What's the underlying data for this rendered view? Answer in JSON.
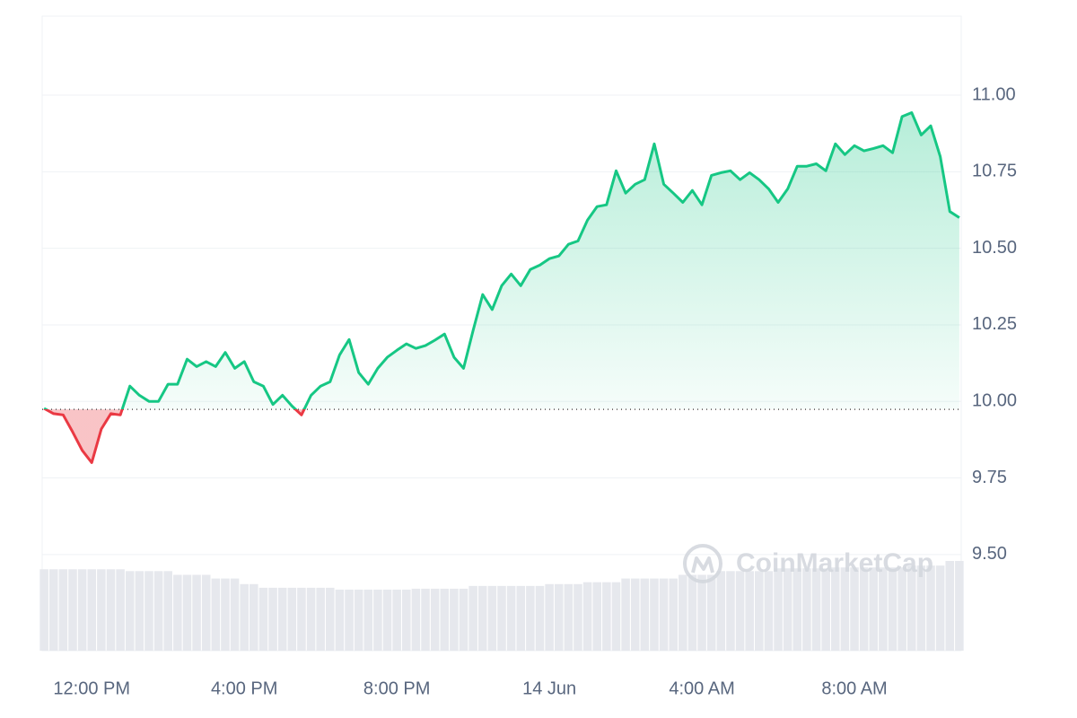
{
  "chart_data": {
    "type": "line",
    "x": [
      10.75,
      11,
      11.25,
      11.5,
      11.75,
      12,
      12.25,
      12.5,
      12.75,
      13,
      13.25,
      13.5,
      13.75,
      14,
      14.25,
      14.5,
      14.75,
      15,
      15.25,
      15.5,
      15.75,
      16,
      16.25,
      16.5,
      16.75,
      17,
      17.25,
      17.5,
      17.75,
      18,
      18.25,
      18.5,
      18.75,
      19,
      19.25,
      19.5,
      19.75,
      20,
      20.25,
      20.5,
      20.75,
      21,
      21.25,
      21.5,
      21.75,
      22,
      22.25,
      22.5,
      22.75,
      23,
      23.25,
      23.5,
      23.75,
      24,
      24.25,
      24.5,
      24.75,
      25,
      25.25,
      25.5,
      25.75,
      26,
      26.25,
      26.5,
      26.75,
      27,
      27.25,
      27.5,
      27.75,
      28,
      28.25,
      28.5,
      28.75,
      29,
      29.25,
      29.5,
      29.75,
      30,
      30.25,
      30.5,
      30.75,
      31,
      31.25,
      31.5,
      31.75,
      32,
      32.25,
      32.5,
      32.75,
      33,
      33.25,
      33.5,
      33.75,
      34,
      34.25,
      34.5,
      34.75
    ],
    "values": [
      9.977,
      9.96,
      9.956,
      9.9,
      9.84,
      9.8,
      9.91,
      9.96,
      9.956,
      10.05,
      10.02,
      10.0,
      10.0,
      10.056,
      10.056,
      10.138,
      10.114,
      10.13,
      10.114,
      10.16,
      10.108,
      10.13,
      10.064,
      10.05,
      9.99,
      10.02,
      9.985,
      9.956,
      10.02,
      10.05,
      10.064,
      10.152,
      10.202,
      10.094,
      10.056,
      10.108,
      10.144,
      10.167,
      10.188,
      10.173,
      10.182,
      10.2,
      10.22,
      10.144,
      10.108,
      10.231,
      10.349,
      10.3,
      10.378,
      10.416,
      10.378,
      10.431,
      10.445,
      10.466,
      10.475,
      10.513,
      10.524,
      10.592,
      10.636,
      10.642,
      10.753,
      10.68,
      10.709,
      10.724,
      10.841,
      10.709,
      10.68,
      10.65,
      10.689,
      10.642,
      10.738,
      10.747,
      10.753,
      10.724,
      10.747,
      10.724,
      10.694,
      10.65,
      10.694,
      10.768,
      10.768,
      10.776,
      10.753,
      10.841,
      10.806,
      10.835,
      10.818,
      10.826,
      10.835,
      10.812,
      10.93,
      10.943,
      10.87,
      10.9,
      10.8,
      10.62,
      10.6
    ],
    "volume": [
      88,
      88,
      88,
      88,
      88,
      88,
      88,
      88,
      88,
      86,
      86,
      86,
      86,
      86,
      82,
      82,
      82,
      82,
      78,
      78,
      78,
      72,
      72,
      68,
      68,
      68,
      68,
      68,
      68,
      68,
      68,
      66,
      66,
      66,
      66,
      66,
      66,
      66,
      66,
      67,
      67,
      67,
      67,
      67,
      67,
      70,
      70,
      70,
      70,
      70,
      70,
      70,
      70,
      72,
      72,
      72,
      72,
      74,
      74,
      74,
      74,
      78,
      78,
      78,
      78,
      78,
      78,
      82,
      82,
      82,
      82,
      86,
      86,
      86,
      86,
      86,
      86,
      89,
      89,
      89,
      89,
      89,
      89,
      90,
      90,
      90,
      90,
      90,
      90,
      90,
      90,
      92,
      92,
      92,
      92,
      97,
      97
    ],
    "baseline": 9.974,
    "up_color": "#16c784",
    "down_color": "#ea3943",
    "volume_color": "#e6e8ed",
    "xlim": [
      10.7,
      34.8
    ],
    "xticks": [
      {
        "value": 12,
        "label": "12:00 PM"
      },
      {
        "value": 16,
        "label": "4:00 PM"
      },
      {
        "value": 20,
        "label": "8:00 PM"
      },
      {
        "value": 24,
        "label": "14 Jun"
      },
      {
        "value": 28,
        "label": "4:00 AM"
      },
      {
        "value": 32,
        "label": "8:00 AM"
      }
    ],
    "ylim": [
      9.186,
      11.258
    ],
    "yticks": [
      {
        "value": 9.5,
        "label": "9.50"
      },
      {
        "value": 9.75,
        "label": "9.75"
      },
      {
        "value": 10,
        "label": "10.00"
      },
      {
        "value": 10.25,
        "label": "10.25"
      },
      {
        "value": 10.5,
        "label": "10.50"
      },
      {
        "value": 10.75,
        "label": "10.75"
      },
      {
        "value": 11,
        "label": "11.00"
      }
    ],
    "grid": true,
    "watermark": "CoinMarketCap"
  }
}
